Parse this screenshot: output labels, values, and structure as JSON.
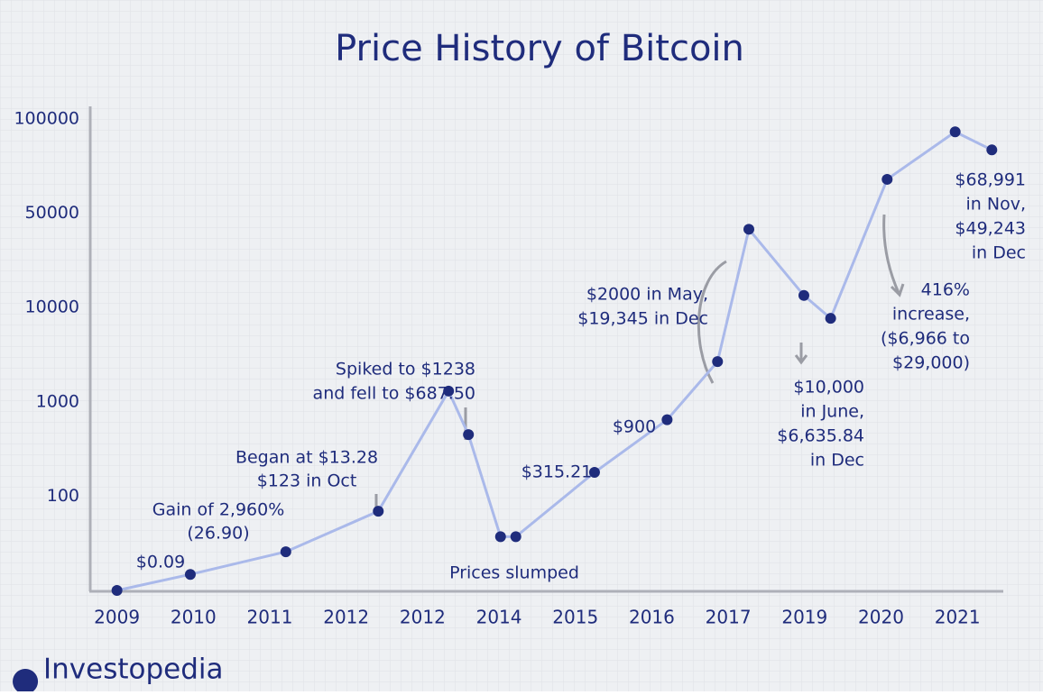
{
  "chart_data": {
    "type": "line",
    "title": "Price History of Bitcoin",
    "x": [
      0,
      0.96,
      2.21,
      3.42,
      4.34,
      4.6,
      5.02,
      5.22,
      6.25,
      7.2,
      7.86,
      8.27,
      8.99,
      9.34,
      10.08,
      10.97,
      11.45
    ],
    "series": [
      {
        "color": "#aab9ea",
        "marker_color": "#1f2c7c",
        "values": [
          0,
          17,
          41,
          84,
          2031,
          687,
          57,
          57,
          327,
          829,
          4840,
          43226,
          15161,
          8969,
          68000,
          93200,
          83600
        ]
      }
    ],
    "xlim": [
      -0.35,
      11.6
    ],
    "xticks": [
      {
        "value": 0,
        "label": "2009"
      },
      {
        "value": 1,
        "label": "2010"
      },
      {
        "value": 2,
        "label": "2011"
      },
      {
        "value": 3,
        "label": "2012"
      },
      {
        "value": 4,
        "label": "2012"
      },
      {
        "value": 5,
        "label": "2014"
      },
      {
        "value": 6,
        "label": "2015"
      },
      {
        "value": 7,
        "label": "2016"
      },
      {
        "value": 8,
        "label": "2017"
      },
      {
        "value": 9,
        "label": "2019"
      },
      {
        "value": 10,
        "label": "2020"
      },
      {
        "value": 11,
        "label": "2021"
      }
    ],
    "ylim": [
      0,
      100000
    ],
    "yticks": [
      100,
      1000,
      10000,
      50000,
      100000
    ],
    "annotations": [
      [
        "$0.09"
      ],
      [
        "Gain of 2,960%",
        "(26.90)"
      ],
      [
        "Began at $13.28",
        "$123 in Oct"
      ],
      [
        "Spiked to $1238",
        "and fell to $687.50"
      ],
      [
        "Prices slumped"
      ],
      [
        "$315.21"
      ],
      [
        "$900"
      ],
      [
        "$2000 in May,",
        "$19,345 in Dec"
      ],
      [
        "$10,000",
        "in June,",
        "$6,635.84",
        "in Dec"
      ],
      [
        "416%",
        "increase,",
        "($6,966 to",
        "$29,000)"
      ],
      [
        "$68,991",
        "in Nov,",
        "$49,243",
        "in Dec"
      ]
    ],
    "source": "Investopedia"
  }
}
